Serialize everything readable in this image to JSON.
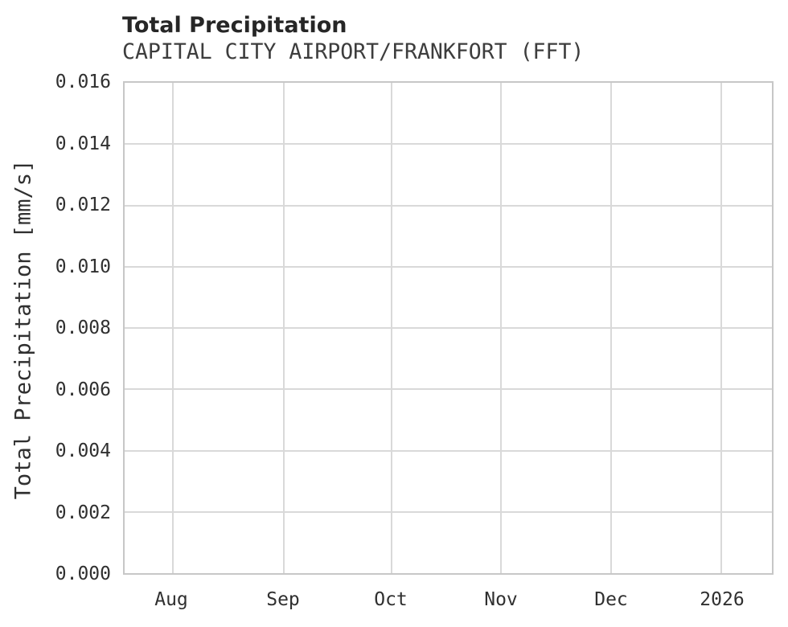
{
  "chart_data": {
    "type": "line",
    "title": "Total Precipitation",
    "subtitle": "CAPITAL CITY AIRPORT/FRANKFORT (FFT)",
    "xlabel": "",
    "ylabel": "Total Precipitation [mm/s]",
    "x_ticks": [
      "Aug",
      "Sep",
      "Oct",
      "Nov",
      "Dec",
      "2026"
    ],
    "x_tick_pos": [
      0.0743,
      0.2463,
      0.4121,
      0.5817,
      0.7512,
      0.922
    ],
    "y_ticks": [
      "0.000",
      "0.002",
      "0.004",
      "0.006",
      "0.008",
      "0.010",
      "0.012",
      "0.014",
      "0.016"
    ],
    "ylim": [
      0.0,
      0.016
    ],
    "grid": true,
    "legend": "none",
    "series": []
  },
  "colors": {
    "title": "#262626",
    "subtitle": "#3d3d3d",
    "tick_label": "#303030",
    "gridline": "#d9d9d9",
    "plot_border": "#c7c7c7",
    "background": "#ffffff"
  }
}
